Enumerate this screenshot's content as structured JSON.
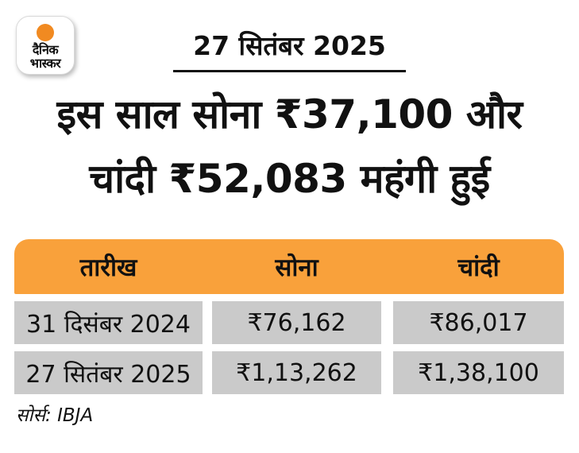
{
  "brand": {
    "logo_line1": "दैनिक",
    "logo_line2": "भास्कर"
  },
  "date_label": "27 सितंबर 2025",
  "headline": {
    "line1": "इस साल सोना ₹37,100 और",
    "line2": "चांदी ₹52,083 महंगी हुई"
  },
  "table": {
    "headers": [
      "तारीख",
      "सोना",
      "चांदी"
    ],
    "rows": [
      [
        "31 दिसंबर 2024",
        "₹76,162",
        "₹86,017"
      ],
      [
        "27 सितंबर 2025",
        "₹1,13,262",
        "₹1,38,100"
      ]
    ]
  },
  "source_label": "सोर्स: IBJA",
  "chart_data": {
    "type": "table",
    "title": "इस साल सोना ₹37,100 और चांदी ₹52,083 महंगी हुई",
    "categories": [
      "31 दिसंबर 2024",
      "27 सितंबर 2025"
    ],
    "series": [
      {
        "name": "सोना",
        "values": [
          76162,
          113262
        ]
      },
      {
        "name": "चांदी",
        "values": [
          86017,
          138100
        ]
      }
    ],
    "annotations": [
      "सोना बढ़त: 37100",
      "चांदी बढ़त: 52083"
    ],
    "source": "IBJA"
  },
  "colors": {
    "accent_orange": "#F9A13B",
    "logo_orange": "#F18A21",
    "cell_gray": "#CACACA",
    "text_black": "#111111"
  }
}
